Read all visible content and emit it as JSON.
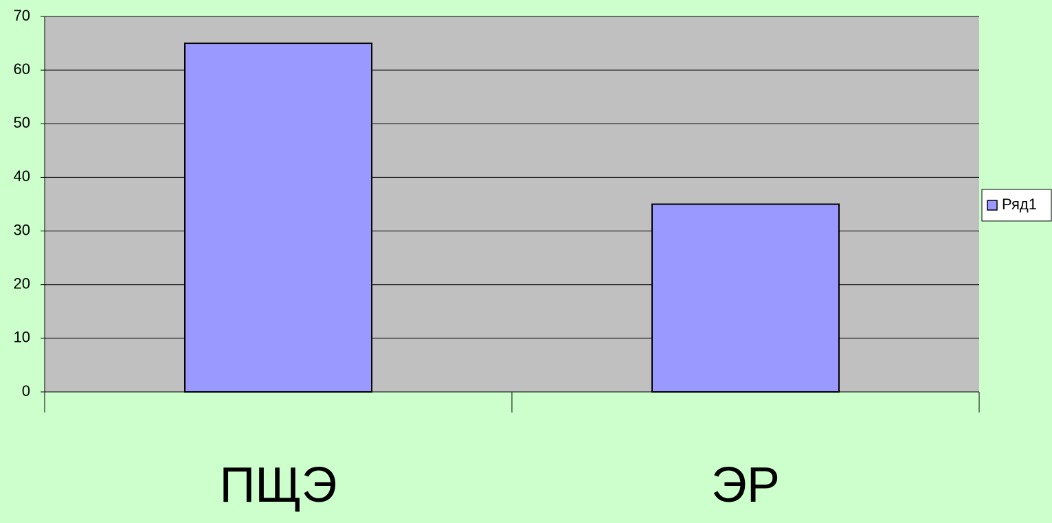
{
  "chart_data": {
    "type": "bar",
    "categories": [
      "ПЩЭ",
      "ЭР"
    ],
    "series": [
      {
        "name": "Ряд1",
        "color": "#9999ff",
        "values": [
          65,
          35
        ]
      }
    ],
    "ylim": [
      0,
      70
    ],
    "yticks": [
      0,
      10,
      20,
      30,
      40,
      50,
      60,
      70
    ],
    "grid": true,
    "legend": "right"
  }
}
